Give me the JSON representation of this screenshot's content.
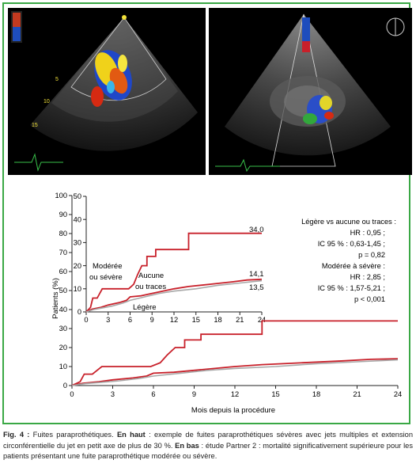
{
  "caption": {
    "label": "Fig. 4 :",
    "intro": " Fuites paraprothétiques. ",
    "top_label": "En haut",
    "top_text": " : exemple de fuites paraprothétiques sévères avec jets multiples et extension circonférentielle du jet en petit axe de plus de 30 %. ",
    "bottom_label": "En bas",
    "bottom_text": " : étude Partner 2 : mortalité significativement supérieure pour les patients présentant une fuite paraprothétique modérée ou sévère."
  },
  "stats": {
    "line1": "Légère vs aucune ou traces :",
    "line2": "HR : 0,95 ;",
    "line3": "IC 95 % : 0,63-1,45 ;",
    "line4": "p = 0,82",
    "line5": "Modérée à sévère :",
    "line6": "HR : 2,85 ;",
    "line7": "IC 95 % : 1,57-5,21 ;",
    "line8": "p < 0,001"
  },
  "chart_data": {
    "type": "line",
    "xlabel": "Mois depuis la procédure",
    "ylabel": "Patients (%)",
    "xlim": [
      0,
      24
    ],
    "ylim_main": [
      0,
      100
    ],
    "ylim_inset": [
      0,
      50
    ],
    "main_yticks": [
      0,
      10,
      20,
      30,
      40,
      50,
      60,
      70,
      80,
      90,
      100
    ],
    "inset_yticks": [
      0,
      10,
      20,
      30,
      40,
      50
    ],
    "xticks": [
      0,
      3,
      6,
      9,
      12,
      15,
      18,
      21,
      24
    ],
    "colors": {
      "moderate_severe": "#c8202a",
      "mild": "#c8202a",
      "none_trace": "#a8a8a8"
    },
    "series": [
      {
        "label_text": "Modérée ou sévère",
        "color": "#c8202a",
        "end_label": "34,0",
        "points": [
          [
            0,
            0
          ],
          [
            0.6,
            2
          ],
          [
            0.9,
            6
          ],
          [
            1.5,
            6
          ],
          [
            2.2,
            10
          ],
          [
            5.8,
            10
          ],
          [
            6.5,
            12
          ],
          [
            7.0,
            16
          ],
          [
            7.6,
            20
          ],
          [
            8.3,
            20
          ],
          [
            8.3,
            24
          ],
          [
            9.5,
            24
          ],
          [
            9.5,
            27
          ],
          [
            14,
            27
          ],
          [
            14,
            34
          ],
          [
            24,
            34
          ]
        ]
      },
      {
        "label_text": "Légère",
        "color": "#c8202a",
        "end_label": "14,1",
        "points": [
          [
            0,
            0
          ],
          [
            0.8,
            1.2
          ],
          [
            2,
            2
          ],
          [
            3,
            3
          ],
          [
            4.5,
            4
          ],
          [
            5.5,
            5
          ],
          [
            6,
            6.5
          ],
          [
            7.5,
            7
          ],
          [
            9,
            8
          ],
          [
            12,
            10
          ],
          [
            14,
            11
          ],
          [
            17,
            12
          ],
          [
            20,
            13
          ],
          [
            22,
            13.8
          ],
          [
            24,
            14.1
          ]
        ]
      },
      {
        "label_text": "Aucune ou traces",
        "color": "#a8a8a8",
        "end_label": "13,5",
        "points": [
          [
            0,
            0
          ],
          [
            1,
            1
          ],
          [
            2,
            1.6
          ],
          [
            3.5,
            2.5
          ],
          [
            5,
            3.8
          ],
          [
            6,
            5
          ],
          [
            8,
            6.5
          ],
          [
            10,
            8
          ],
          [
            12,
            9
          ],
          [
            15,
            10
          ],
          [
            18,
            11.5
          ],
          [
            21,
            12.5
          ],
          [
            24,
            13.5
          ]
        ]
      }
    ]
  }
}
